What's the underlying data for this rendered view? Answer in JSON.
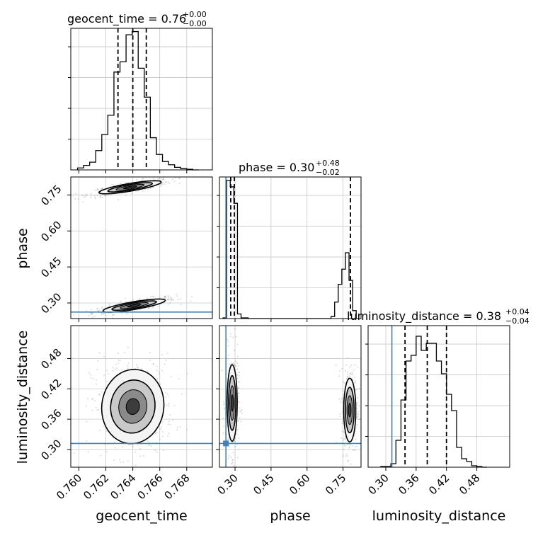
{
  "chart_data": {
    "type": "corner",
    "parameters": [
      "geocent_time",
      "phase",
      "luminosity_distance"
    ],
    "axis_labels": {
      "x": [
        "geocent_time",
        "phase",
        "luminosity_distance"
      ],
      "y_phase": "phase",
      "y_distance": "luminosity_distance"
    },
    "titles": [
      {
        "param": "geocent_time",
        "text": "geocent_time = 0.76",
        "plus": "+0.00",
        "minus": "−0.00"
      },
      {
        "param": "phase",
        "text": "phase = 0.30",
        "plus": "+0.48",
        "minus": "−0.02"
      },
      {
        "param": "luminosity_distance",
        "text": "luminosity_distance = 0.38",
        "plus": "+0.04",
        "minus": "−0.04"
      }
    ],
    "ranges": {
      "geocent_time": [
        0.7594,
        0.7699
      ],
      "phase": [
        0.235,
        0.825
      ],
      "luminosity_distance": [
        0.265,
        0.545
      ]
    },
    "ticks": {
      "geocent_time": [
        "0.760",
        "0.762",
        "0.764",
        "0.766",
        "0.768"
      ],
      "phase": [
        "0.30",
        "0.45",
        "0.60",
        "0.75"
      ],
      "luminosity_distance": [
        "0.30",
        "0.36",
        "0.42",
        "0.48"
      ]
    },
    "injection": {
      "phase": 0.262,
      "luminosity_distance": 0.312
    },
    "quantile_lines": {
      "geocent_time": [
        0.7629,
        0.764,
        0.765
      ],
      "phase": [
        0.282,
        0.297,
        0.781
      ],
      "luminosity_distance": [
        0.338,
        0.382,
        0.42
      ]
    },
    "histograms": {
      "geocent_time": {
        "edges": [
          0.7599,
          0.76035,
          0.7608,
          0.76125,
          0.7617,
          0.76215,
          0.7626,
          0.76305,
          0.7635,
          0.76395,
          0.7644,
          0.76485,
          0.7653,
          0.76575,
          0.7662,
          0.76665,
          0.7671,
          0.76755,
          0.768,
          0.76845,
          0.7689
        ],
        "counts": [
          3,
          7,
          12,
          30,
          55,
          85,
          152,
          168,
          210,
          215,
          158,
          113,
          50,
          24,
          13,
          8,
          4,
          2,
          1,
          0
        ],
        "ymax": 220
      },
      "phase": {
        "edges": [
          0.25,
          0.265,
          0.28,
          0.295,
          0.31,
          0.325,
          0.34,
          0.355,
          0.37,
          0.385,
          0.4,
          0.415,
          0.43,
          0.445,
          0.46,
          0.475,
          0.49,
          0.505,
          0.52,
          0.535,
          0.55,
          0.565,
          0.58,
          0.595,
          0.61,
          0.625,
          0.64,
          0.655,
          0.67,
          0.685,
          0.7,
          0.715,
          0.73,
          0.745,
          0.76,
          0.775,
          0.79,
          0.805
        ],
        "counts": [
          1,
          210,
          200,
          175,
          7,
          1,
          1,
          0,
          0,
          0,
          0,
          0,
          0,
          0,
          0,
          0,
          0,
          0,
          0,
          0,
          0,
          0,
          0,
          0,
          0,
          0,
          0,
          0,
          0,
          0,
          3,
          25,
          52,
          75,
          100,
          58,
          12
        ],
        "ymax": 215
      },
      "luminosity_distance": {
        "edges": [
          0.29,
          0.3,
          0.31,
          0.32,
          0.33,
          0.34,
          0.35,
          0.36,
          0.37,
          0.38,
          0.39,
          0.4,
          0.41,
          0.42,
          0.43,
          0.44,
          0.45,
          0.46,
          0.47,
          0.48,
          0.49,
          0.5
        ],
        "counts": [
          1,
          1,
          5,
          38,
          95,
          150,
          158,
          185,
          165,
          175,
          175,
          150,
          132,
          103,
          80,
          28,
          12,
          8,
          2,
          1,
          0
        ],
        "ymax": 200
      }
    },
    "posterior_modes": {
      "time_phase": [
        {
          "cx": 0.7641,
          "cy": 0.289,
          "sx": 0.0011,
          "sy": 0.013,
          "rho": 0.8
        },
        {
          "cx": 0.7638,
          "cy": 0.782,
          "sx": 0.0011,
          "sy": 0.013,
          "rho": 0.8
        }
      ],
      "time_distance": [
        {
          "cx": 0.764,
          "cy": 0.385,
          "sx": 0.0011,
          "sy": 0.035,
          "rho": 0.05
        }
      ],
      "phase_distance": [
        {
          "cx": 0.288,
          "cy": 0.392,
          "sx": 0.01,
          "sy": 0.036,
          "rho": 0.0
        },
        {
          "cx": 0.778,
          "cy": 0.378,
          "sx": 0.012,
          "sy": 0.03,
          "rho": 0.0
        }
      ]
    },
    "colors": {
      "line": "#000000",
      "injection": "#4682b4",
      "grid": "#c8c8c8",
      "scatter": "#555555"
    }
  }
}
